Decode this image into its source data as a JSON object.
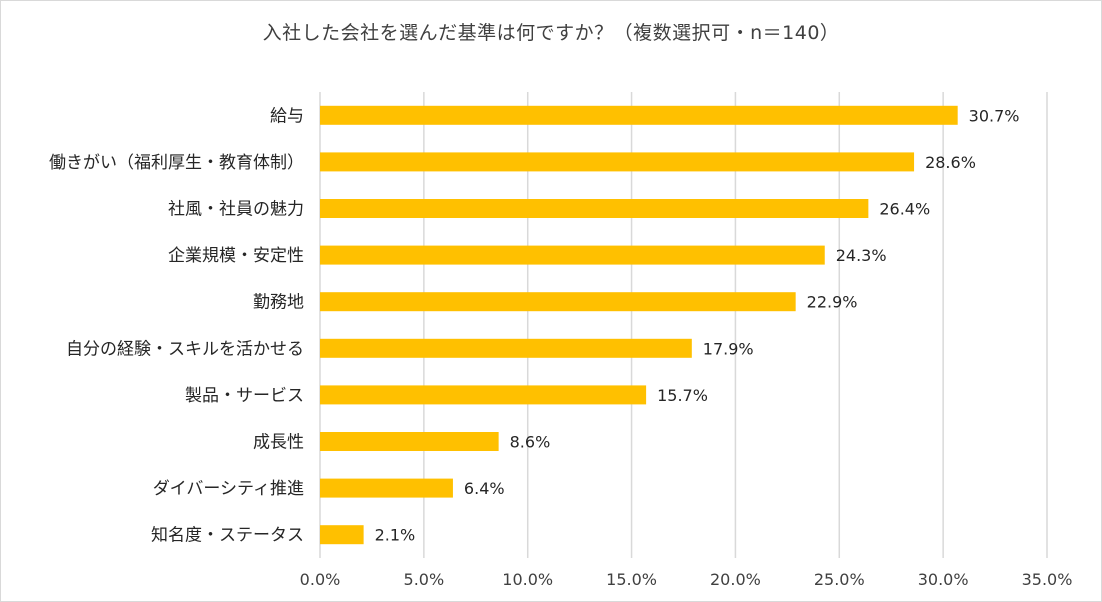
{
  "chart_data": {
    "type": "bar",
    "orientation": "horizontal",
    "title": "入社した会社を選んだ基準は何ですか？（複数選択可・n＝140）",
    "categories": [
      "給与",
      "働きがい（福利厚生・教育体制）",
      "社風・社員の魅力",
      "企業規模・安定性",
      "勤務地",
      "自分の経験・スキルを活かせる",
      "製品・サービス",
      "成長性",
      "ダイバーシティ推進",
      "知名度・ステータス"
    ],
    "values": [
      30.7,
      28.6,
      26.4,
      24.3,
      22.9,
      17.9,
      15.7,
      8.6,
      6.4,
      2.1
    ],
    "value_labels": [
      "30.7%",
      "28.6%",
      "26.4%",
      "24.3%",
      "22.9%",
      "17.9%",
      "15.7%",
      "8.6%",
      "6.4%",
      "2.1%"
    ],
    "xlim": [
      0,
      35
    ],
    "xticks": [
      0,
      5,
      10,
      15,
      20,
      25,
      30,
      35
    ],
    "xtick_labels": [
      "0.0%",
      "5.0%",
      "10.0%",
      "15.0%",
      "20.0%",
      "25.0%",
      "30.0%",
      "35.0%"
    ],
    "grid": "vertical",
    "bar_color": "#FFC000",
    "grid_color": "#D9D9D9",
    "xlabel": "",
    "ylabel": ""
  }
}
